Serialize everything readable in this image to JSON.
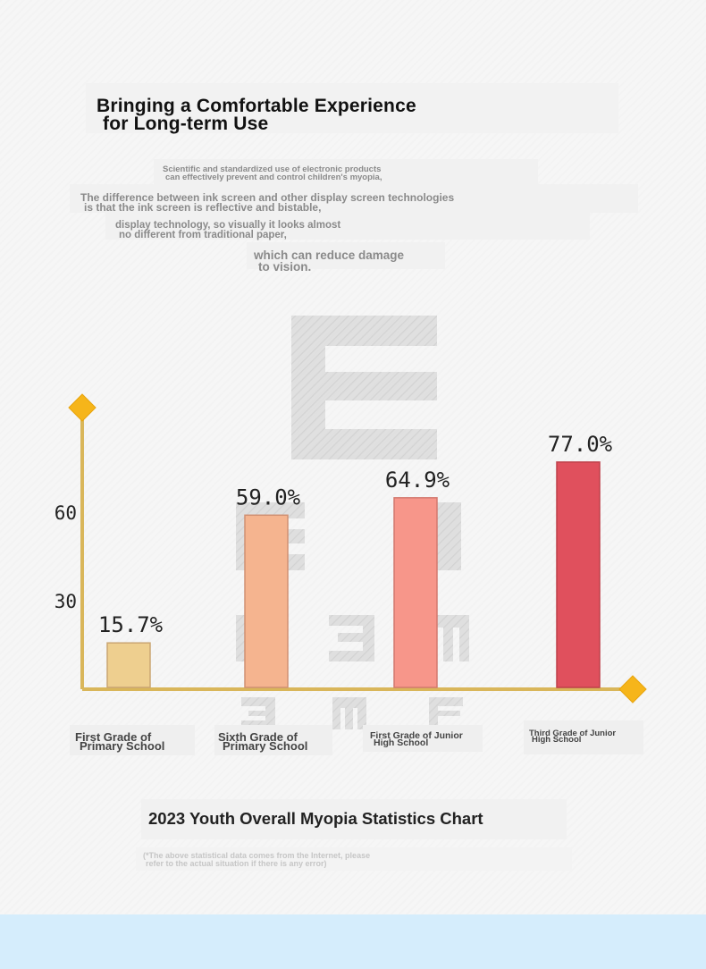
{
  "header": {
    "title_line1": "Bringing a Comfortable Experience",
    "title_line2": "for Long-term Use"
  },
  "intro": {
    "p1_line1": "Scientific and standardized use of electronic products",
    "p1_line2": "can effectively prevent and control children's myopia,",
    "p2_line1": "The difference between ink screen and other display screen technologies",
    "p2_line2": "is that the ink screen is reflective and bistable,",
    "p3_line1": "display technology, so visually it looks almost",
    "p3_line2": "no different from traditional paper,",
    "p4_line1": "which can reduce damage",
    "p4_line2": "to vision."
  },
  "chart_data": {
    "type": "bar",
    "categories": [
      [
        "First Grade of",
        "Primary School"
      ],
      [
        "Sixth Grade of",
        "Primary School"
      ],
      [
        "First Grade of Junior",
        "High School"
      ],
      [
        "Third Grade of Junior",
        "High School"
      ]
    ],
    "values": [
      15.7,
      59.0,
      64.9,
      77.0
    ],
    "value_labels": [
      "15.7%",
      "59.0%",
      "64.9%",
      "77.0%"
    ],
    "yticks": [
      30,
      60
    ],
    "ylim": [
      0,
      92
    ],
    "grid": false,
    "colors": [
      "#eecf8f",
      "#f5b48f",
      "#f7968a",
      "#e0505d"
    ],
    "axis_color": "#d9b65a",
    "marker_color": "#f6b51a"
  },
  "footer": {
    "caption": "2023 Youth Overall Myopia Statistics Chart",
    "note_line1": "(*The above statistical data comes from the Internet, please",
    "note_line2": "refer to the actual situation if there is any error)"
  }
}
